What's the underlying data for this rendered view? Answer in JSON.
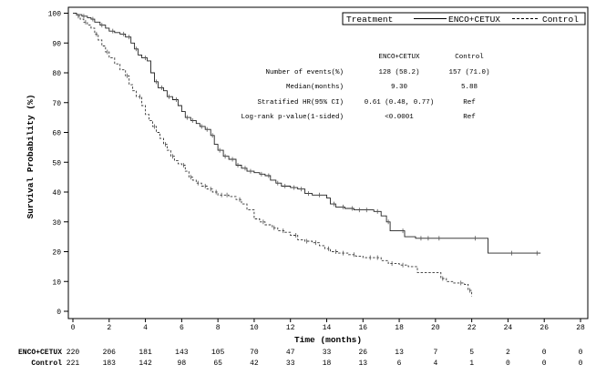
{
  "chart_data": {
    "type": "line",
    "subtype": "kaplan-meier",
    "xlabel": "Time (months)",
    "ylabel": "Survival Probability (%)",
    "xlim": [
      0,
      28
    ],
    "ylim": [
      0,
      100
    ],
    "xticks": [
      0,
      2,
      4,
      6,
      8,
      10,
      12,
      14,
      16,
      18,
      20,
      22,
      24,
      26,
      28
    ],
    "yticks": [
      0,
      10,
      20,
      30,
      40,
      50,
      60,
      70,
      80,
      90,
      100
    ],
    "legend": {
      "title": "Treatment",
      "position": "top-right",
      "entries": [
        {
          "name": "ENCO+CETUX",
          "style": "solid"
        },
        {
          "name": "Control",
          "style": "dashed"
        }
      ]
    },
    "stats_table": {
      "headers": [
        "ENCO+CETUX",
        "Control"
      ],
      "rows": [
        {
          "label": "Number of events(%)",
          "values": [
            "128 (58.2)",
            "157 (71.0)"
          ]
        },
        {
          "label": "Median(months)",
          "values": [
            "9.30",
            "5.88"
          ]
        },
        {
          "label": "Stratified HR(95% CI)",
          "values": [
            "0.61 (0.48, 0.77)",
            "Ref"
          ]
        },
        {
          "label": "Log-rank p-value(1-sided)",
          "values": [
            "<0.0001",
            "Ref"
          ]
        }
      ]
    },
    "series": [
      {
        "name": "ENCO+CETUX",
        "style": "solid",
        "points": [
          [
            0,
            100
          ],
          [
            0.2,
            99.5
          ],
          [
            0.5,
            99
          ],
          [
            0.8,
            98.5
          ],
          [
            1,
            98
          ],
          [
            1.2,
            97
          ],
          [
            1.5,
            96
          ],
          [
            1.8,
            95
          ],
          [
            2,
            94
          ],
          [
            2.3,
            93.5
          ],
          [
            2.6,
            93
          ],
          [
            2.9,
            92
          ],
          [
            3.2,
            90
          ],
          [
            3.4,
            88
          ],
          [
            3.6,
            86
          ],
          [
            3.8,
            85
          ],
          [
            4.1,
            84
          ],
          [
            4.3,
            80
          ],
          [
            4.5,
            77
          ],
          [
            4.7,
            75
          ],
          [
            5,
            74
          ],
          [
            5.2,
            72
          ],
          [
            5.5,
            71
          ],
          [
            5.8,
            69
          ],
          [
            6,
            67
          ],
          [
            6.2,
            65
          ],
          [
            6.5,
            64
          ],
          [
            6.8,
            63
          ],
          [
            7,
            62
          ],
          [
            7.3,
            61
          ],
          [
            7.6,
            59
          ],
          [
            7.8,
            56
          ],
          [
            8,
            54
          ],
          [
            8.3,
            52
          ],
          [
            8.6,
            51
          ],
          [
            9,
            49
          ],
          [
            9.3,
            48
          ],
          [
            9.6,
            47
          ],
          [
            10,
            46.5
          ],
          [
            10.3,
            46
          ],
          [
            10.6,
            45.5
          ],
          [
            10.9,
            44
          ],
          [
            11.2,
            43
          ],
          [
            11.5,
            42
          ],
          [
            12,
            41.5
          ],
          [
            12.4,
            41
          ],
          [
            12.8,
            39.5
          ],
          [
            13.2,
            39
          ],
          [
            14,
            38
          ],
          [
            14.2,
            36
          ],
          [
            14.5,
            35
          ],
          [
            15,
            34.5
          ],
          [
            15.5,
            34
          ],
          [
            16,
            34
          ],
          [
            16.6,
            33.5
          ],
          [
            17,
            32
          ],
          [
            17.3,
            30
          ],
          [
            17.5,
            27
          ],
          [
            18,
            27
          ],
          [
            18.3,
            25
          ],
          [
            18.9,
            24.5
          ],
          [
            20.5,
            24.5
          ],
          [
            22,
            24.5
          ],
          [
            22.9,
            19.5
          ],
          [
            24,
            19.5
          ],
          [
            25,
            19.5
          ],
          [
            25.8,
            19.5
          ]
        ],
        "censor_x": [
          0.6,
          1.1,
          1.6,
          2.2,
          2.8,
          3.1,
          3.5,
          4,
          4.6,
          4.9,
          5.3,
          5.7,
          6.3,
          6.6,
          7.1,
          7.4,
          7.7,
          8.1,
          8.4,
          8.8,
          9.1,
          9.5,
          9.8,
          10.4,
          10.8,
          11.3,
          11.7,
          12.2,
          12.6,
          13,
          13.6,
          14.4,
          14.9,
          15.4,
          15.8,
          16.2,
          16.8,
          17.4,
          18.2,
          19.2,
          19.6,
          20.2,
          22.2,
          24.2,
          25.6
        ]
      },
      {
        "name": "Control",
        "style": "dashed",
        "points": [
          [
            0,
            100
          ],
          [
            0.2,
            99
          ],
          [
            0.4,
            98
          ],
          [
            0.6,
            97
          ],
          [
            0.8,
            96
          ],
          [
            1,
            95
          ],
          [
            1.2,
            93
          ],
          [
            1.4,
            91
          ],
          [
            1.6,
            89
          ],
          [
            1.8,
            87
          ],
          [
            2,
            85
          ],
          [
            2.3,
            83
          ],
          [
            2.6,
            81
          ],
          [
            2.9,
            79
          ],
          [
            3.1,
            76
          ],
          [
            3.3,
            74
          ],
          [
            3.5,
            72
          ],
          [
            3.8,
            69
          ],
          [
            4,
            66
          ],
          [
            4.2,
            64
          ],
          [
            4.4,
            62
          ],
          [
            4.6,
            60
          ],
          [
            4.8,
            58
          ],
          [
            5,
            56
          ],
          [
            5.2,
            54
          ],
          [
            5.4,
            52
          ],
          [
            5.6,
            50.5
          ],
          [
            5.8,
            49.5
          ],
          [
            6,
            49
          ],
          [
            6.2,
            47
          ],
          [
            6.4,
            45
          ],
          [
            6.6,
            44
          ],
          [
            6.8,
            43
          ],
          [
            7.1,
            42
          ],
          [
            7.4,
            41
          ],
          [
            7.7,
            40
          ],
          [
            8,
            39
          ],
          [
            8.3,
            39
          ],
          [
            8.6,
            38.5
          ],
          [
            9,
            37.5
          ],
          [
            9.3,
            36
          ],
          [
            9.6,
            34
          ],
          [
            10,
            31
          ],
          [
            10.3,
            30
          ],
          [
            10.6,
            29
          ],
          [
            11,
            28
          ],
          [
            11.3,
            27
          ],
          [
            11.7,
            26.5
          ],
          [
            12,
            25.5
          ],
          [
            12.4,
            24
          ],
          [
            12.8,
            23.5
          ],
          [
            13.2,
            23
          ],
          [
            13.6,
            22
          ],
          [
            13.9,
            21
          ],
          [
            14.2,
            20
          ],
          [
            14.6,
            19.5
          ],
          [
            15.2,
            19
          ],
          [
            15.6,
            18.5
          ],
          [
            16,
            18
          ],
          [
            16.6,
            18
          ],
          [
            17,
            17
          ],
          [
            17.4,
            16
          ],
          [
            18,
            15.5
          ],
          [
            18.5,
            15
          ],
          [
            19,
            13
          ],
          [
            20,
            13
          ],
          [
            20.3,
            11
          ],
          [
            20.6,
            10
          ],
          [
            21,
            9.5
          ],
          [
            21.6,
            9
          ],
          [
            21.8,
            7
          ],
          [
            22,
            5
          ]
        ],
        "censor_x": [
          0.3,
          0.7,
          1.3,
          1.9,
          3,
          3.7,
          4.5,
          5.1,
          5.5,
          6.1,
          6.5,
          6.9,
          7.3,
          7.6,
          7.9,
          8.2,
          8.5,
          9.2,
          10.5,
          11.1,
          11.6,
          12.3,
          12.9,
          13.4,
          14.1,
          14.5,
          14.9,
          15.5,
          16.4,
          16.8,
          17.6,
          18.2,
          20.4,
          21.4,
          21.9
        ]
      }
    ],
    "risk_table": {
      "times": [
        0,
        2,
        4,
        6,
        8,
        10,
        12,
        14,
        16,
        18,
        20,
        22,
        24,
        26,
        28
      ],
      "rows": [
        {
          "label": "ENCO+CETUX",
          "values": [
            "220",
            "206",
            "181",
            "143",
            "105",
            "70",
            "47",
            "33",
            "26",
            "13",
            "7",
            "5",
            "2",
            "0",
            "0"
          ]
        },
        {
          "label": "Control",
          "values": [
            "221",
            "183",
            "142",
            "98",
            "65",
            "42",
            "33",
            "18",
            "13",
            "6",
            "4",
            "1",
            "0",
            "0",
            "0"
          ]
        }
      ]
    }
  }
}
